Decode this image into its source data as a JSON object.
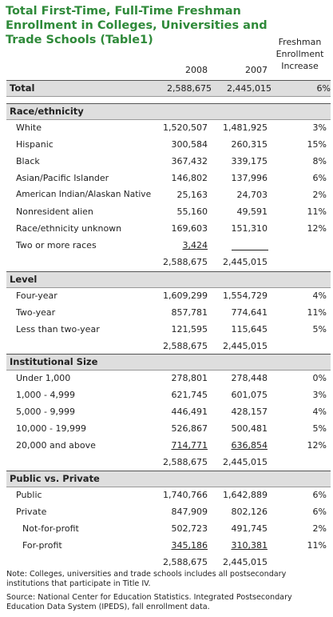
{
  "title": "Total First-Time, Full-Time Freshman Enrollment in Colleges, Universities and Trade Schools (Table1)",
  "columns": {
    "y2008": "2008",
    "y2007": "2007",
    "increase_l1": "Freshman",
    "increase_l2": "Enrollment",
    "increase_l3": "Increase"
  },
  "total": {
    "label": "Total",
    "v2008": "2,588,675",
    "v2007": "2,445,015",
    "inc": "6%"
  },
  "sections": {
    "race": {
      "heading": "Race/ethnicity",
      "rows": [
        {
          "label": "White",
          "v2008": "1,520,507",
          "v2007": "1,481,925",
          "inc": "3%"
        },
        {
          "label": "Hispanic",
          "v2008": "300,584",
          "v2007": "260,315",
          "inc": "15%"
        },
        {
          "label": "Black",
          "v2008": "367,432",
          "v2007": "339,175",
          "inc": "8%"
        },
        {
          "label": "Asian/Pacific Islander",
          "v2008": "146,802",
          "v2007": "137,996",
          "inc": "6%"
        },
        {
          "label": "American Indian/Alaskan Native",
          "v2008": "25,163",
          "v2007": "24,703",
          "inc": "2%"
        },
        {
          "label": "Nonresident alien",
          "v2008": "55,160",
          "v2007": "49,591",
          "inc": "11%"
        },
        {
          "label": "Race/ethnicity unknown",
          "v2008": "169,603",
          "v2007": "151,310",
          "inc": "12%"
        },
        {
          "label": "Two or more races",
          "v2008": "3,424",
          "v2007": "",
          "inc": ""
        }
      ],
      "subtotal": {
        "v2008": "2,588,675",
        "v2007": "2,445,015"
      }
    },
    "level": {
      "heading": "Level",
      "rows": [
        {
          "label": "Four-year",
          "v2008": "1,609,299",
          "v2007": "1,554,729",
          "inc": "4%"
        },
        {
          "label": "Two-year",
          "v2008": "857,781",
          "v2007": "774,641",
          "inc": "11%"
        },
        {
          "label": "Less than two-year",
          "v2008": "121,595",
          "v2007": "115,645",
          "inc": "5%"
        }
      ],
      "subtotal": {
        "v2008": "2,588,675",
        "v2007": "2,445,015"
      }
    },
    "size": {
      "heading": "Institutional Size",
      "rows": [
        {
          "label": "Under 1,000",
          "v2008": "278,801",
          "v2007": "278,448",
          "inc": "0%"
        },
        {
          "label": "1,000 - 4,999",
          "v2008": "621,745",
          "v2007": "601,075",
          "inc": "3%"
        },
        {
          "label": "5,000 - 9,999",
          "v2008": "446,491",
          "v2007": "428,157",
          "inc": "4%"
        },
        {
          "label": "10,000 - 19,999",
          "v2008": "526,867",
          "v2007": "500,481",
          "inc": "5%"
        },
        {
          "label": "20,000 and above",
          "v2008": "714,771",
          "v2007": "636,854",
          "inc": "12%"
        }
      ],
      "subtotal": {
        "v2008": "2,588,675",
        "v2007": "2,445,015"
      }
    },
    "control": {
      "heading": "Public vs. Private",
      "rows": [
        {
          "label": "Public",
          "v2008": "1,740,766",
          "v2007": "1,642,889",
          "inc": "6%"
        },
        {
          "label": "Private",
          "v2008": "847,909",
          "v2007": "802,126",
          "inc": "6%"
        },
        {
          "label": "Not-for-profit",
          "v2008": "502,723",
          "v2007": "491,745",
          "inc": "2%"
        },
        {
          "label": "For-profit",
          "v2008": "345,186",
          "v2007": "310,381",
          "inc": "11%"
        }
      ],
      "subtotal": {
        "v2008": "2,588,675",
        "v2007": "2,445,015"
      }
    }
  },
  "notes": {
    "note": "Note: Colleges, universities and trade schools includes all postsecondary institutions that participate in Title IV.",
    "source": "Source: National Center for Education Statistics. Integrated Postsecondary Education Data System (IPEDS), fall enrollment data."
  }
}
